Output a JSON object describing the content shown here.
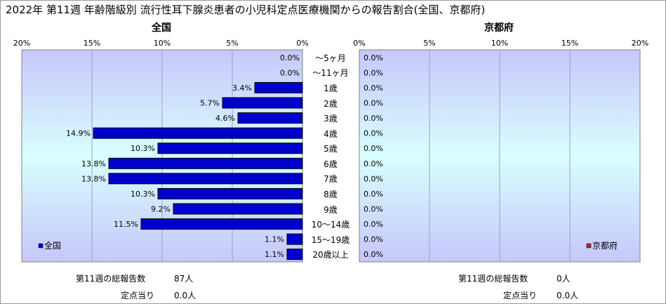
{
  "title": "2022年 第11週 年齢階級別 流行性耳下腺炎患者の小児科定点医療機関からの報告割合(全国、京都府)",
  "colors": {
    "plot_gradient_top": "#c7c7fb",
    "plot_gradient_mid": "#d8ffff",
    "bar_national": "#0000cc",
    "bar_kyoto": "#a52a2a",
    "gridline": "#9aa0c8"
  },
  "chart_data": [
    {
      "type": "bar",
      "orientation": "horizontal",
      "title": "全国",
      "xlim": [
        0,
        20
      ],
      "x_reversed": true,
      "ticks": [
        "20%",
        "15%",
        "10%",
        "5%",
        "0%"
      ],
      "legend": "全国",
      "legend_placement": "bottom-left",
      "grid": true,
      "categories": [
        "～5ヶ月",
        "～11ヶ月",
        "1歳",
        "2歳",
        "3歳",
        "4歳",
        "5歳",
        "6歳",
        "7歳",
        "8歳",
        "9歳",
        "10～14歳",
        "15～19歳",
        "20歳以上"
      ],
      "values": [
        0.0,
        0.0,
        3.4,
        5.7,
        4.6,
        14.9,
        10.3,
        13.8,
        13.8,
        10.3,
        9.2,
        11.5,
        1.1,
        1.1
      ],
      "labels": [
        "0.0%",
        "0.0%",
        "3.4%",
        "5.7%",
        "4.6%",
        "14.9%",
        "10.3%",
        "13.8%",
        "13.8%",
        "10.3%",
        "9.2%",
        "11.5%",
        "1.1%",
        "1.1%"
      ]
    },
    {
      "type": "bar",
      "orientation": "horizontal",
      "title": "京都府",
      "xlim": [
        0,
        20
      ],
      "x_reversed": false,
      "ticks": [
        "0%",
        "5%",
        "10%",
        "15%",
        "20%"
      ],
      "legend": "京都府",
      "legend_placement": "bottom-right",
      "grid": true,
      "values": [
        0,
        0,
        0,
        0,
        0,
        0,
        0,
        0,
        0,
        0,
        0,
        0,
        0,
        0
      ],
      "labels": [
        "0.0%",
        "0.0%",
        "0.0%",
        "0.0%",
        "0.0%",
        "0.0%",
        "0.0%",
        "0.0%",
        "0.0%",
        "0.0%",
        "0.0%",
        "0.0%",
        "0.0%",
        "0.0%"
      ]
    }
  ],
  "footer": {
    "national": {
      "total_label": "第11週の総報告数",
      "total_value": "87人",
      "per_site_label": "定点当り",
      "per_site_value": "0.0人"
    },
    "kyoto": {
      "total_label": "第11週の総報告数",
      "total_value": "0人",
      "per_site_label": "定点当り",
      "per_site_value": "0.0人"
    }
  }
}
